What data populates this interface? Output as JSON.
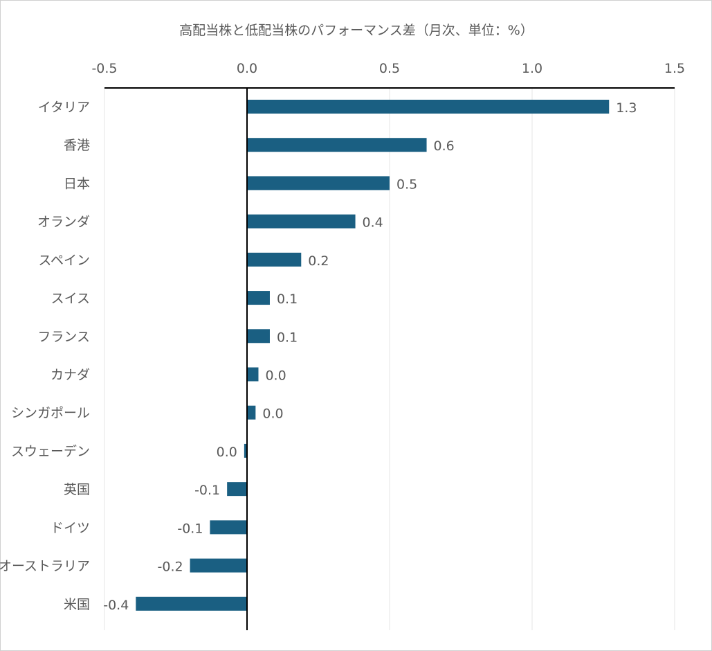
{
  "chart_data": {
    "type": "bar",
    "orientation": "horizontal",
    "title": "高配当株と低配当株のパフォーマンス差（月次、単位：%）",
    "categories": [
      "イタリア",
      "香港",
      "日本",
      "オランダ",
      "スペイン",
      "スイス",
      "フランス",
      "カナダ",
      "シンガポール",
      "スウェーデン",
      "英国",
      "ドイツ",
      "オーストラリア",
      "米国"
    ],
    "values": [
      1.27,
      0.63,
      0.5,
      0.38,
      0.19,
      0.08,
      0.08,
      0.04,
      0.03,
      -0.01,
      -0.07,
      -0.13,
      -0.2,
      -0.39
    ],
    "data_labels": [
      "1.3",
      "0.6",
      "0.5",
      "0.4",
      "0.2",
      "0.1",
      "0.1",
      "0.0",
      "0.0",
      "0.0",
      "-0.1",
      "-0.1",
      "-0.2",
      "-0.4"
    ],
    "xlim": [
      -0.5,
      1.5
    ],
    "x_ticks": [
      -0.5,
      0.0,
      0.5,
      1.0,
      1.5
    ],
    "x_tick_labels": [
      "-0.5",
      "0.0",
      "0.5",
      "1.0",
      "1.5"
    ],
    "x_axis_position": "top",
    "grid": "vertical",
    "bar_color": "#1a5f82",
    "grid_color": "#e6e6e6"
  }
}
